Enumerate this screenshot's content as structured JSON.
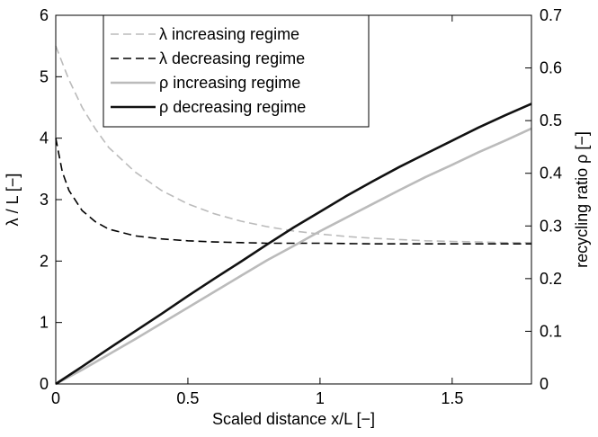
{
  "chart_data": {
    "type": "line",
    "title": "",
    "xlabel": "Scaled distance x/L [−]",
    "ylabel_left": "λ / L [−]",
    "ylabel_right": "recycling ratio ρ [−]",
    "xlim": [
      0,
      1.8
    ],
    "ylim_left": [
      0,
      6
    ],
    "ylim_right": [
      0,
      0.7
    ],
    "x_ticks": [
      {
        "value": 0,
        "label": "0"
      },
      {
        "value": 0.5,
        "label": "0.5"
      },
      {
        "value": 1,
        "label": "1"
      },
      {
        "value": 1.5,
        "label": "1.5"
      }
    ],
    "y_ticks_left": [
      {
        "value": 0,
        "label": "0"
      },
      {
        "value": 1,
        "label": "1"
      },
      {
        "value": 2,
        "label": "2"
      },
      {
        "value": 3,
        "label": "3"
      },
      {
        "value": 4,
        "label": "4"
      },
      {
        "value": 5,
        "label": "5"
      },
      {
        "value": 6,
        "label": "6"
      }
    ],
    "y_ticks_right": [
      {
        "value": 0,
        "label": "0"
      },
      {
        "value": 0.1,
        "label": "0.1"
      },
      {
        "value": 0.2,
        "label": "0.2"
      },
      {
        "value": 0.3,
        "label": "0.3"
      },
      {
        "value": 0.4,
        "label": "0.4"
      },
      {
        "value": 0.5,
        "label": "0.5"
      },
      {
        "value": 0.6,
        "label": "0.6"
      },
      {
        "value": 0.7,
        "label": "0.7"
      }
    ],
    "grid": false,
    "legend_position": "top-left",
    "series": [
      {
        "name": "λ increasing regime",
        "axis": "left",
        "color": "#bbbbbb",
        "dash": "dashed",
        "x": [
          0,
          0.05,
          0.1,
          0.15,
          0.2,
          0.3,
          0.4,
          0.5,
          0.6,
          0.7,
          0.8,
          0.9,
          1.0,
          1.1,
          1.2,
          1.3,
          1.4,
          1.5,
          1.6,
          1.7,
          1.8
        ],
        "y": [
          5.5,
          4.95,
          4.5,
          4.15,
          3.85,
          3.45,
          3.15,
          2.93,
          2.77,
          2.65,
          2.56,
          2.49,
          2.44,
          2.4,
          2.37,
          2.35,
          2.33,
          2.32,
          2.31,
          2.3,
          2.3
        ]
      },
      {
        "name": "λ decreasing regime",
        "axis": "left",
        "color": "#000000",
        "dash": "dashed",
        "x": [
          0,
          0.025,
          0.05,
          0.1,
          0.15,
          0.2,
          0.3,
          0.4,
          0.5,
          0.6,
          0.7,
          0.8,
          1.0,
          1.2,
          1.4,
          1.6,
          1.8
        ],
        "y": [
          4.0,
          3.45,
          3.15,
          2.82,
          2.64,
          2.52,
          2.41,
          2.36,
          2.33,
          2.31,
          2.3,
          2.29,
          2.29,
          2.28,
          2.28,
          2.28,
          2.28
        ]
      },
      {
        "name": "ρ increasing regime",
        "axis": "right",
        "color": "#bbbbbb",
        "dash": "solid",
        "x": [
          0,
          0.1,
          0.2,
          0.3,
          0.4,
          0.5,
          0.6,
          0.7,
          0.8,
          0.9,
          1.0,
          1.1,
          1.2,
          1.3,
          1.4,
          1.5,
          1.6,
          1.7,
          1.8
        ],
        "y": [
          0,
          0.027,
          0.056,
          0.085,
          0.115,
          0.145,
          0.175,
          0.205,
          0.235,
          0.262,
          0.29,
          0.316,
          0.342,
          0.368,
          0.393,
          0.416,
          0.44,
          0.462,
          0.485
        ]
      },
      {
        "name": "ρ decreasing regime",
        "axis": "right",
        "color": "#111111",
        "dash": "solid",
        "x": [
          0,
          0.1,
          0.2,
          0.3,
          0.4,
          0.5,
          0.6,
          0.7,
          0.8,
          0.9,
          1.0,
          1.1,
          1.2,
          1.3,
          1.4,
          1.5,
          1.6,
          1.7,
          1.8
        ],
        "y": [
          0,
          0.033,
          0.067,
          0.1,
          0.133,
          0.167,
          0.2,
          0.232,
          0.265,
          0.297,
          0.327,
          0.357,
          0.385,
          0.412,
          0.437,
          0.462,
          0.487,
          0.51,
          0.532
        ]
      }
    ]
  }
}
